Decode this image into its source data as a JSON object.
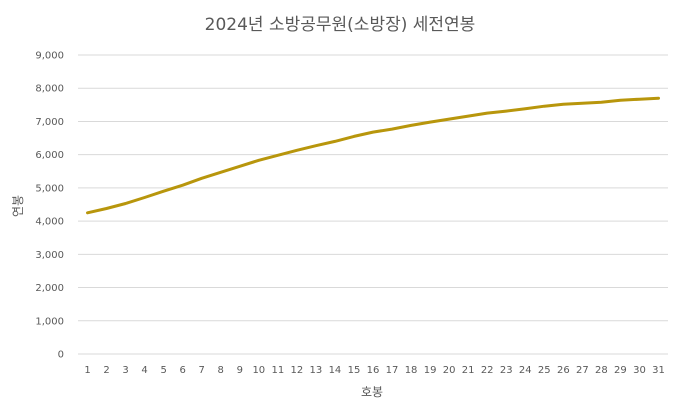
{
  "chart_data": {
    "type": "line",
    "title": "2024년 소방공무원(소방장) 세전연봉",
    "xlabel": "호봉",
    "ylabel": "연봉",
    "x": [
      1,
      2,
      3,
      4,
      5,
      6,
      7,
      8,
      9,
      10,
      11,
      12,
      13,
      14,
      15,
      16,
      17,
      18,
      19,
      20,
      21,
      22,
      23,
      24,
      25,
      26,
      27,
      28,
      29,
      30,
      31
    ],
    "series": [
      {
        "values": [
          4250,
          4380,
          4530,
          4710,
          4900,
          5080,
          5290,
          5470,
          5650,
          5830,
          5980,
          6130,
          6270,
          6400,
          6550,
          6680,
          6770,
          6880,
          6980,
          7070,
          7160,
          7250,
          7310,
          7380,
          7460,
          7520,
          7550,
          7580,
          7640,
          7670,
          7700
        ],
        "color": "#b8960c"
      }
    ],
    "ylim": [
      0,
      9000
    ],
    "yticks": [
      0,
      1000,
      2000,
      3000,
      4000,
      5000,
      6000,
      7000,
      8000,
      9000
    ],
    "ytick_labels": [
      "0",
      "1,000",
      "2,000",
      "3,000",
      "4,000",
      "5,000",
      "6,000",
      "7,000",
      "8,000",
      "9,000"
    ],
    "grid": true,
    "legend": "none"
  }
}
